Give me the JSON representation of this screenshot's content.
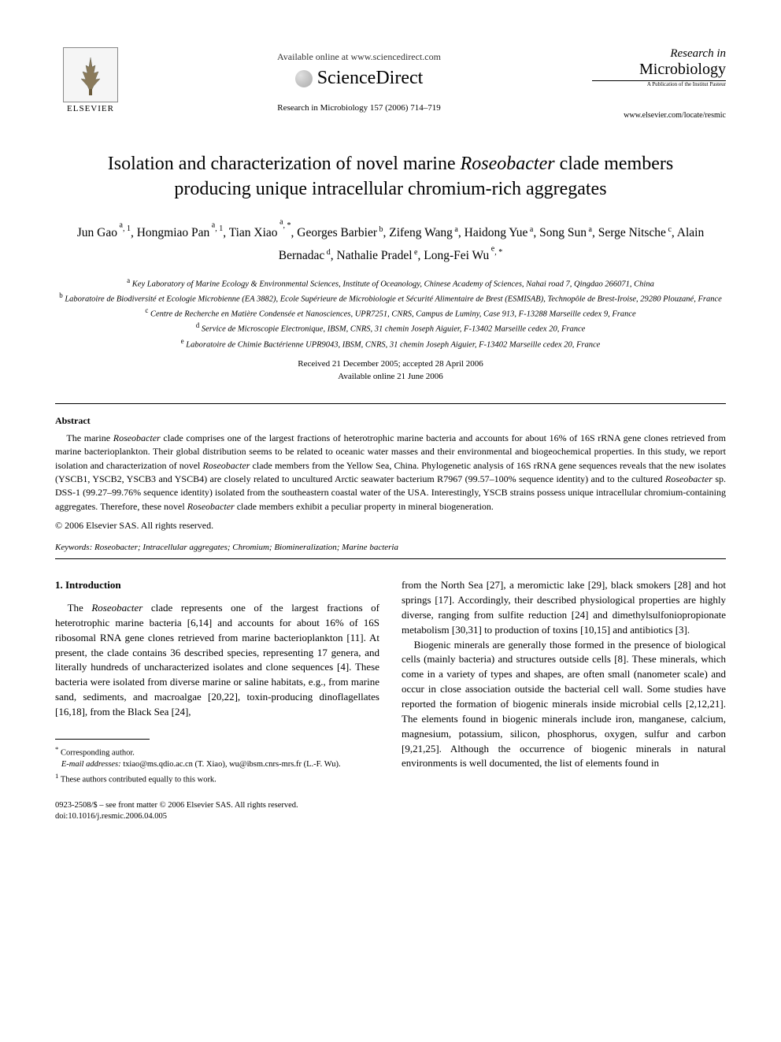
{
  "header": {
    "elsevier_label": "ELSEVIER",
    "available_online": "Available online at www.sciencedirect.com",
    "sciencedirect": "ScienceDirect",
    "journal_ref": "Research in Microbiology 157 (2006) 714–719",
    "journal_logo_title_pre": "Research in",
    "journal_logo_title": "Microbiology",
    "journal_logo_sub": "A Publication of the Institut Pasteur",
    "journal_url": "www.elsevier.com/locate/resmic"
  },
  "title": {
    "line1_pre": "Isolation and characterization of novel marine ",
    "line1_ital": "Roseobacter",
    "line1_post": " clade members",
    "line2": "producing unique intracellular chromium-rich aggregates"
  },
  "authors": {
    "list": "Jun Gao a,1, Hongmiao Pan a,1, Tian Xiao a,*, Georges Barbier b, Zifeng Wang a, Haidong Yue a, Song Sun a, Serge Nitsche c, Alain Bernadac d, Nathalie Pradel e, Long-Fei Wu e,*"
  },
  "affiliations": {
    "a": "Key Laboratory of Marine Ecology & Environmental Sciences, Institute of Oceanology, Chinese Academy of Sciences, Nahai road 7, Qingdao 266071, China",
    "b": "Laboratoire de Biodiversité et Ecologie Microbienne (EA 3882), Ecole Supérieure de Microbiologie et Sécurité Alimentaire de Brest (ESMISAB), Technopôle de Brest-Iroise, 29280 Plouzané, France",
    "c": "Centre de Recherche en Matière Condensée et Nanosciences, UPR7251, CNRS, Campus de Luminy, Case 913, F-13288 Marseille cedex 9, France",
    "d": "Service de Microscopie Electronique, IBSM, CNRS, 31 chemin Joseph Aiguier, F-13402 Marseille cedex 20, France",
    "e": "Laboratoire de Chimie Bactérienne UPR9043, IBSM, CNRS, 31 chemin Joseph Aiguier, F-13402 Marseille cedex 20, France"
  },
  "dates": {
    "received": "Received 21 December 2005; accepted 28 April 2006",
    "available": "Available online 21 June 2006"
  },
  "abstract": {
    "heading": "Abstract",
    "body_parts": [
      {
        "t": "The marine ",
        "i": false
      },
      {
        "t": "Roseobacter",
        "i": true
      },
      {
        "t": " clade comprises one of the largest fractions of heterotrophic marine bacteria and accounts for about 16% of 16S rRNA gene clones retrieved from marine bacterioplankton. Their global distribution seems to be related to oceanic water masses and their environmental and biogeochemical properties. In this study, we report isolation and characterization of novel ",
        "i": false
      },
      {
        "t": "Roseobacter",
        "i": true
      },
      {
        "t": " clade members from the Yellow Sea, China. Phylogenetic analysis of 16S rRNA gene sequences reveals that the new isolates (YSCB1, YSCB2, YSCB3 and YSCB4) are closely related to uncultured Arctic seawater bacterium R7967 (99.57–100% sequence identity) and to the cultured ",
        "i": false
      },
      {
        "t": "Roseobacter",
        "i": true
      },
      {
        "t": " sp. DSS-1 (99.27–99.76% sequence identity) isolated from the southeastern coastal water of the USA. Interestingly, YSCB strains possess unique intracellular chromium-containing aggregates. Therefore, these novel ",
        "i": false
      },
      {
        "t": "Roseobacter",
        "i": true
      },
      {
        "t": " clade members exhibit a peculiar property in mineral biogeneration.",
        "i": false
      }
    ],
    "copyright": "© 2006 Elsevier SAS. All rights reserved."
  },
  "keywords": {
    "label": "Keywords:",
    "text": " Roseobacter; Intracellular aggregates; Chromium; Biomineralization; Marine bacteria"
  },
  "intro": {
    "heading": "1. Introduction",
    "col1_p1_parts": [
      {
        "t": "The ",
        "i": false
      },
      {
        "t": "Roseobacter",
        "i": true
      },
      {
        "t": " clade represents one of the largest fractions of heterotrophic marine bacteria [6,14] and accounts for about 16% of 16S ribosomal RNA gene clones retrieved from marine bacterioplankton [11]. At present, the clade contains 36 described species, representing 17 genera, and literally hundreds of uncharacterized isolates and clone sequences [4]. These bacteria were isolated from diverse marine or saline habitats, e.g., from marine sand, sediments, and macroalgae [20,22], toxin-producing dinoflagellates [16,18], from the Black Sea [24],",
        "i": false
      }
    ],
    "col2_p1": "from the North Sea [27], a meromictic lake [29], black smokers [28] and hot springs [17]. Accordingly, their described physiological properties are highly diverse, ranging from sulfite reduction [24] and dimethylsulfoniopropionate metabolism [30,31] to production of toxins [10,15] and antibiotics [3].",
    "col2_p2": "Biogenic minerals are generally those formed in the presence of biological cells (mainly bacteria) and structures outside cells [8]. These minerals, which come in a variety of types and shapes, are often small (nanometer scale) and occur in close association outside the bacterial cell wall. Some studies have reported the formation of biogenic minerals inside microbial cells [2,12,21]. The elements found in biogenic minerals include iron, manganese, calcium, magnesium, potassium, silicon, phosphorus, oxygen, sulfur and carbon [9,21,25]. Although the occurrence of biogenic minerals in natural environments is well documented, the list of elements found in"
  },
  "footnotes": {
    "corresponding": "Corresponding author.",
    "email_label": "E-mail addresses:",
    "emails": " txiao@ms.qdio.ac.cn (T. Xiao), wu@ibsm.cnrs-mrs.fr (L.-F. Wu).",
    "equal": "These authors contributed equally to this work."
  },
  "footer": {
    "line1": "0923-2508/$ – see front matter © 2006 Elsevier SAS. All rights reserved.",
    "line2": "doi:10.1016/j.resmic.2006.04.005"
  },
  "colors": {
    "text": "#000000",
    "background": "#ffffff",
    "muted": "#666666"
  }
}
